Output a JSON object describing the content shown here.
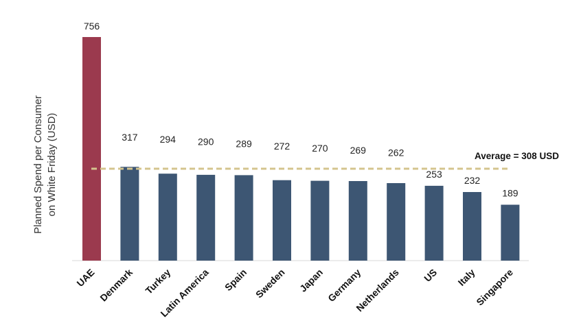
{
  "chart_data": {
    "type": "bar",
    "ylabel_lines": [
      "Planned Spend per Consumer",
      "on White Friday (USD)"
    ],
    "categories": [
      "UAE",
      "Denmark",
      "Turkey",
      "Latin America",
      "Spain",
      "Sweden",
      "Japan",
      "Germany",
      "Netherlands",
      "US",
      "Italy",
      "Singapore"
    ],
    "values": [
      756,
      317,
      294,
      290,
      289,
      272,
      270,
      269,
      262,
      253,
      232,
      189
    ],
    "value_labels": [
      "756",
      "317",
      "294",
      "290",
      "289",
      "272",
      "270",
      "269",
      "262",
      "253",
      "232",
      "189"
    ],
    "ylim": [
      0,
      756
    ],
    "grid": false,
    "highlight_index": 0,
    "average": {
      "value": 308,
      "label": "Average = 308 USD"
    },
    "colors": {
      "highlight": "#9b3a4e",
      "bar": "#3d5673",
      "average_line": "#d4c48e",
      "baseline": "#d9d9d9"
    }
  }
}
